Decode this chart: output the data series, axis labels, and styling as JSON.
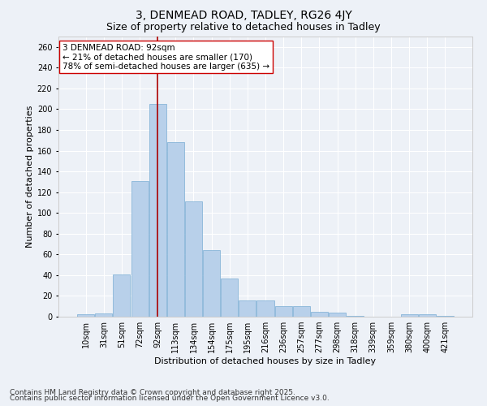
{
  "title1": "3, DENMEAD ROAD, TADLEY, RG26 4JY",
  "title2": "Size of property relative to detached houses in Tadley",
  "xlabel": "Distribution of detached houses by size in Tadley",
  "ylabel": "Number of detached properties",
  "categories": [
    "10sqm",
    "31sqm",
    "51sqm",
    "72sqm",
    "92sqm",
    "113sqm",
    "134sqm",
    "154sqm",
    "175sqm",
    "195sqm",
    "216sqm",
    "236sqm",
    "257sqm",
    "277sqm",
    "298sqm",
    "318sqm",
    "339sqm",
    "359sqm",
    "380sqm",
    "400sqm",
    "421sqm"
  ],
  "values": [
    2,
    3,
    41,
    131,
    205,
    168,
    111,
    64,
    37,
    16,
    16,
    10,
    10,
    5,
    4,
    1,
    0,
    0,
    2,
    2,
    1
  ],
  "bar_color": "#b8d0ea",
  "bar_edge_color": "#7aadd4",
  "highlight_index": 4,
  "highlight_color": "#aa0000",
  "ylim": [
    0,
    270
  ],
  "yticks": [
    0,
    20,
    40,
    60,
    80,
    100,
    120,
    140,
    160,
    180,
    200,
    220,
    240,
    260
  ],
  "annotation_text": "3 DENMEAD ROAD: 92sqm\n← 21% of detached houses are smaller (170)\n78% of semi-detached houses are larger (635) →",
  "footnote1": "Contains HM Land Registry data © Crown copyright and database right 2025.",
  "footnote2": "Contains public sector information licensed under the Open Government Licence v3.0.",
  "background_color": "#edf1f7",
  "grid_color": "#ffffff",
  "title1_fontsize": 10,
  "title2_fontsize": 9,
  "axis_label_fontsize": 8,
  "tick_fontsize": 7,
  "annotation_fontsize": 7.5,
  "footnote_fontsize": 6.5
}
